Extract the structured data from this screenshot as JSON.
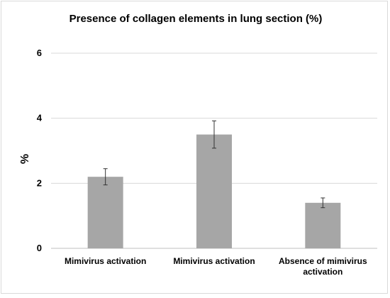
{
  "chart_data": {
    "type": "bar",
    "title": "Presence of collagen elements in lung section (%)",
    "ylabel": "%",
    "xlabel": "",
    "categories": [
      [
        "Mimivirus activation"
      ],
      [
        "Mimivirus activation"
      ],
      [
        "Absence of mimivirus",
        "activation"
      ]
    ],
    "values": [
      2.2,
      3.5,
      1.4
    ],
    "error": [
      0.25,
      0.42,
      0.15
    ],
    "ylim": [
      0,
      6
    ],
    "yticks": [
      0,
      2,
      4,
      6
    ],
    "grid": true,
    "bar_color": "#a6a6a6",
    "grid_color": "#d9d9d9"
  }
}
